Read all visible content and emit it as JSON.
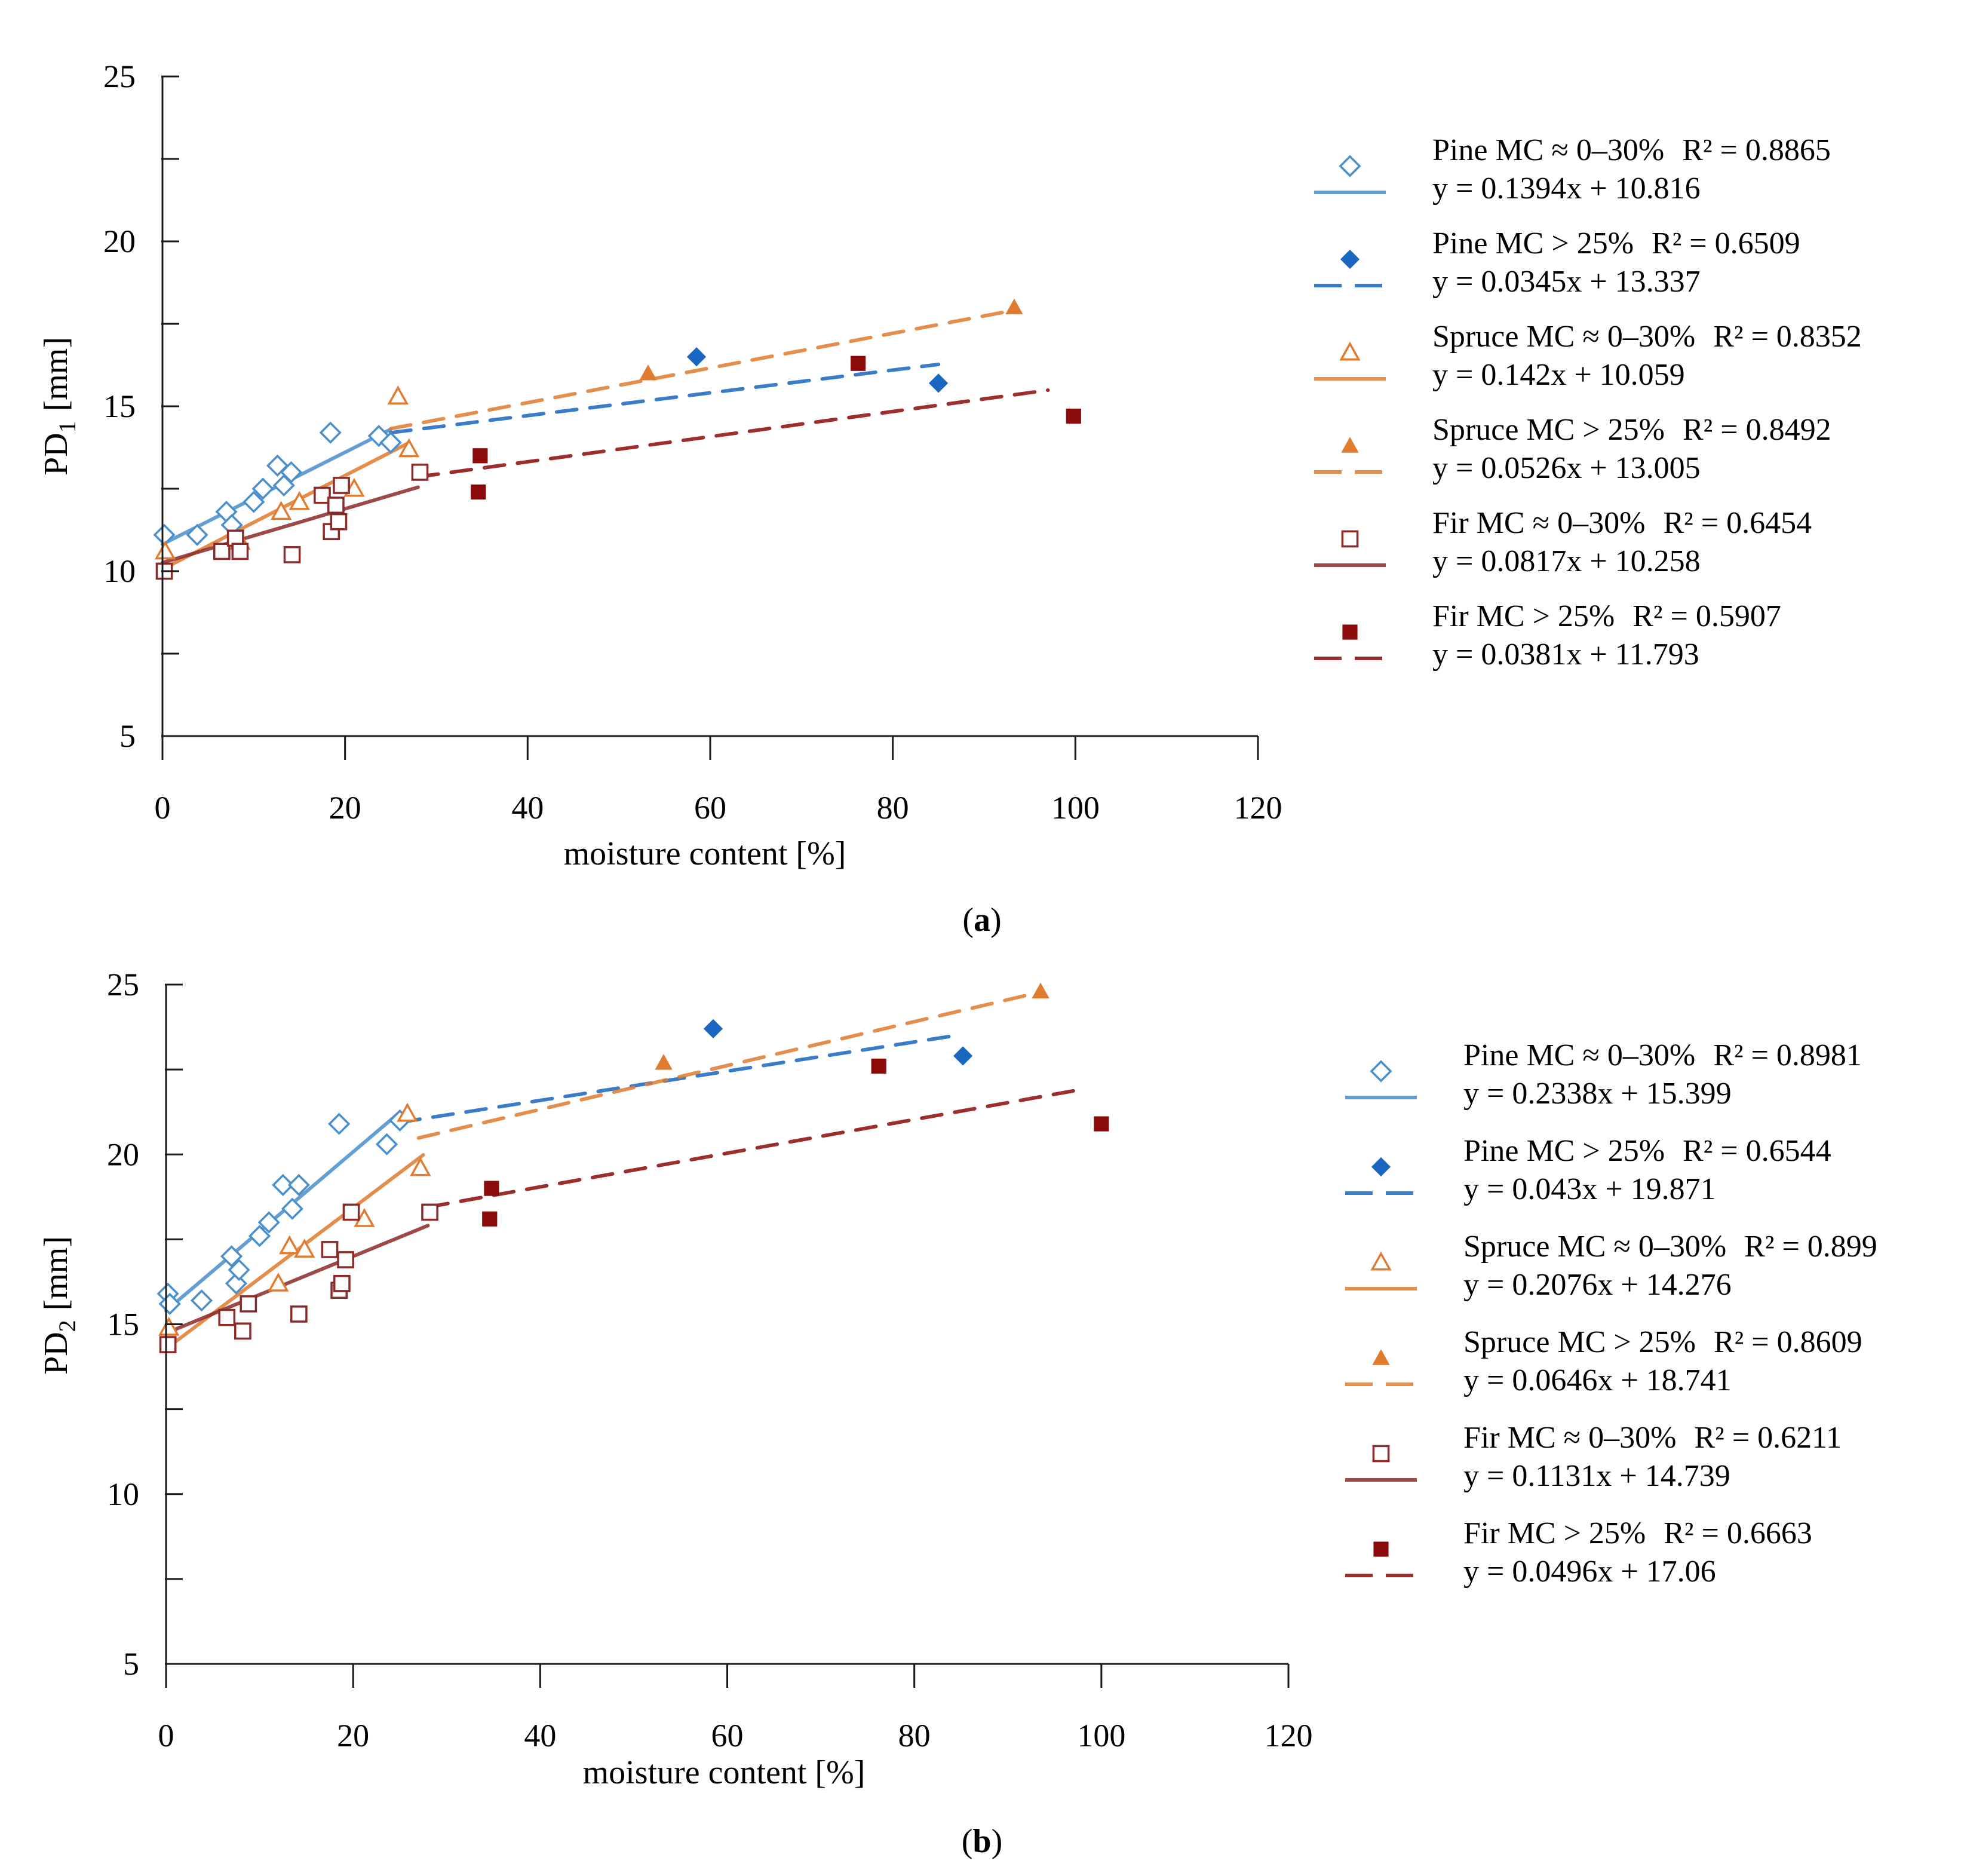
{
  "chart_data": [
    {
      "type": "scatter",
      "panel_label": "a",
      "ylabel_main": "PD",
      "ylabel_sub": "1",
      "ylabel_unit": "[mm]",
      "xlabel": "moisture content [%]",
      "xlim": [
        0,
        120
      ],
      "ylim": [
        5,
        25
      ],
      "xticks": [
        "0",
        "20",
        "40",
        "60",
        "80",
        "100",
        "120"
      ],
      "yticks": [
        "5",
        "10",
        "15",
        "20",
        "25"
      ],
      "series": [
        {
          "name": "Pine MC ≈ 0–30%",
          "r2_text": "R² = 0.8865",
          "eq_text": "y = 0.1394x + 10.816",
          "color": "#4a8fcd",
          "marker": "diamond-open",
          "line": "solid",
          "slope": 0.1394,
          "intercept": 10.816,
          "fit_range": [
            0,
            25
          ],
          "points": [
            [
              0.2,
              11.1
            ],
            [
              3.8,
              11.1
            ],
            [
              7,
              11.8
            ],
            [
              7.6,
              11.4
            ],
            [
              10,
              12.1
            ],
            [
              11,
              12.5
            ],
            [
              12.6,
              13.2
            ],
            [
              13.3,
              12.6
            ],
            [
              14.1,
              13.0
            ],
            [
              18.4,
              14.2
            ],
            [
              23.7,
              14.1
            ],
            [
              25,
              13.9
            ]
          ]
        },
        {
          "name": "Pine MC > 25%",
          "r2_text": "R² = 0.6509",
          "eq_text": "y = 0.0345x + 13.337",
          "color": "#1a66c0",
          "marker": "diamond-filled",
          "line": "dashed",
          "slope": 0.0345,
          "intercept": 13.337,
          "fit_range": [
            25,
            85
          ],
          "points": [
            [
              58.5,
              16.5
            ],
            [
              85,
              15.7
            ]
          ]
        },
        {
          "name": "Spruce MC ≈ 0–30%",
          "r2_text": "R² = 0.8352",
          "eq_text": "y = 0.142x + 10.059",
          "color": "#e07b30",
          "marker": "triangle-open",
          "line": "solid",
          "slope": 0.142,
          "intercept": 10.059,
          "fit_range": [
            0,
            27
          ],
          "points": [
            [
              0.3,
              10.6
            ],
            [
              8.5,
              10.9
            ],
            [
              13,
              11.8
            ],
            [
              15,
              12.1
            ],
            [
              21,
              12.5
            ],
            [
              25.8,
              15.3
            ],
            [
              27,
              13.7
            ]
          ]
        },
        {
          "name": "Spruce MC > 25%",
          "r2_text": "R² = 0.8492",
          "eq_text": "y = 0.0526x + 13.005",
          "color": "#e07b30",
          "marker": "triangle-filled",
          "line": "dashed",
          "slope": 0.0526,
          "intercept": 13.005,
          "fit_range": [
            25,
            93
          ],
          "points": [
            [
              53.2,
              16.0
            ],
            [
              93.3,
              18.0
            ]
          ]
        },
        {
          "name": "Fir MC ≈ 0–30%",
          "r2_text": "R² = 0.6454",
          "eq_text": "y = 0.0817x + 10.258",
          "color": "#8c2a2a",
          "marker": "square-open",
          "line": "solid",
          "slope": 0.0817,
          "intercept": 10.258,
          "fit_range": [
            0,
            28
          ],
          "points": [
            [
              0.2,
              10.0
            ],
            [
              6.5,
              10.6
            ],
            [
              8,
              11.0
            ],
            [
              8.5,
              10.6
            ],
            [
              14.2,
              10.5
            ],
            [
              17.5,
              12.3
            ],
            [
              18.5,
              11.2
            ],
            [
              19,
              12.0
            ],
            [
              19.3,
              11.5
            ],
            [
              19.6,
              12.6
            ],
            [
              28.2,
              13.0
            ]
          ]
        },
        {
          "name": "Fir MC > 25%",
          "r2_text": "R² = 0.5907",
          "eq_text": "y = 0.0381x + 11.793",
          "color": "#8b0a0a",
          "marker": "square-filled",
          "line": "dashed",
          "slope": 0.0381,
          "intercept": 11.793,
          "fit_range": [
            28,
            97
          ],
          "points": [
            [
              34.6,
              12.4
            ],
            [
              34.8,
              13.5
            ],
            [
              76.2,
              16.3
            ],
            [
              99.8,
              14.7
            ]
          ]
        }
      ]
    },
    {
      "type": "scatter",
      "panel_label": "b",
      "ylabel_main": "PD",
      "ylabel_sub": "2",
      "ylabel_unit": "[mm]",
      "xlabel": "moisture content [%]",
      "xlim": [
        0,
        120
      ],
      "ylim": [
        5,
        25
      ],
      "xticks": [
        "0",
        "20",
        "40",
        "60",
        "80",
        "100",
        "120"
      ],
      "yticks": [
        "5",
        "10",
        "15",
        "20",
        "25"
      ],
      "series": [
        {
          "name": "Pine MC ≈ 0–30%",
          "r2_text": "R² = 0.8981",
          "eq_text": "y = 0.2338x + 15.399",
          "color": "#4a8fcd",
          "marker": "diamond-open",
          "line": "solid",
          "slope": 0.2338,
          "intercept": 15.399,
          "fit_range": [
            0,
            25
          ],
          "points": [
            [
              0.2,
              15.9
            ],
            [
              0.4,
              15.6
            ],
            [
              3.8,
              15.7
            ],
            [
              7,
              17.0
            ],
            [
              7.5,
              16.2
            ],
            [
              7.8,
              16.6
            ],
            [
              10,
              17.6
            ],
            [
              11,
              18.0
            ],
            [
              12.5,
              19.1
            ],
            [
              13.5,
              18.4
            ],
            [
              14.2,
              19.1
            ],
            [
              18.5,
              20.9
            ],
            [
              23.6,
              20.3
            ],
            [
              25,
              21.0
            ]
          ]
        },
        {
          "name": "Pine MC > 25%",
          "r2_text": "R² = 0.6544",
          "eq_text": "y = 0.043x + 19.871",
          "color": "#1a66c0",
          "marker": "diamond-filled",
          "line": "dashed",
          "slope": 0.043,
          "intercept": 19.871,
          "fit_range": [
            25,
            85
          ],
          "points": [
            [
              58.5,
              23.7
            ],
            [
              85.2,
              22.9
            ]
          ]
        },
        {
          "name": "Spruce MC ≈ 0–30%",
          "r2_text": "R² = 0.899",
          "eq_text": "y = 0.2076x + 14.276",
          "color": "#e07b30",
          "marker": "triangle-open",
          "line": "solid",
          "slope": 0.2076,
          "intercept": 14.276,
          "fit_range": [
            0,
            27.5
          ],
          "points": [
            [
              0.3,
              14.9
            ],
            [
              12,
              16.2
            ],
            [
              13.2,
              17.3
            ],
            [
              14.8,
              17.2
            ],
            [
              21.2,
              18.1
            ],
            [
              25.8,
              21.2
            ],
            [
              27.2,
              19.6
            ]
          ]
        },
        {
          "name": "Spruce MC > 25%",
          "r2_text": "R² = 0.8609",
          "eq_text": "y = 0.0646x + 18.741",
          "color": "#e07b30",
          "marker": "triangle-filled",
          "line": "dashed",
          "slope": 0.0646,
          "intercept": 18.741,
          "fit_range": [
            27,
            93
          ],
          "points": [
            [
              53.2,
              22.7
            ],
            [
              93.5,
              24.8
            ]
          ]
        },
        {
          "name": "Fir MC ≈ 0–30%",
          "r2_text": "R² = 0.6211",
          "eq_text": "y = 0.1131x + 14.739",
          "color": "#8c2a2a",
          "marker": "square-open",
          "line": "solid",
          "slope": 0.1131,
          "intercept": 14.739,
          "fit_range": [
            0,
            28
          ],
          "points": [
            [
              0.2,
              14.4
            ],
            [
              6.5,
              15.2
            ],
            [
              8.2,
              14.8
            ],
            [
              8.8,
              15.6
            ],
            [
              14.2,
              15.3
            ],
            [
              17.5,
              17.2
            ],
            [
              18.5,
              16.0
            ],
            [
              18.8,
              16.2
            ],
            [
              19.2,
              16.9
            ],
            [
              19.8,
              18.3
            ],
            [
              28.2,
              18.3
            ]
          ]
        },
        {
          "name": "Fir MC > 25%",
          "r2_text": "R² = 0.6663",
          "eq_text": "y = 0.0496x + 17.06",
          "color": "#8b0a0a",
          "marker": "square-filled",
          "line": "dashed",
          "slope": 0.0496,
          "intercept": 17.06,
          "fit_range": [
            28,
            97
          ],
          "points": [
            [
              34.6,
              18.1
            ],
            [
              34.8,
              19.0
            ],
            [
              76.2,
              22.6
            ],
            [
              100,
              20.9
            ]
          ]
        }
      ]
    }
  ]
}
